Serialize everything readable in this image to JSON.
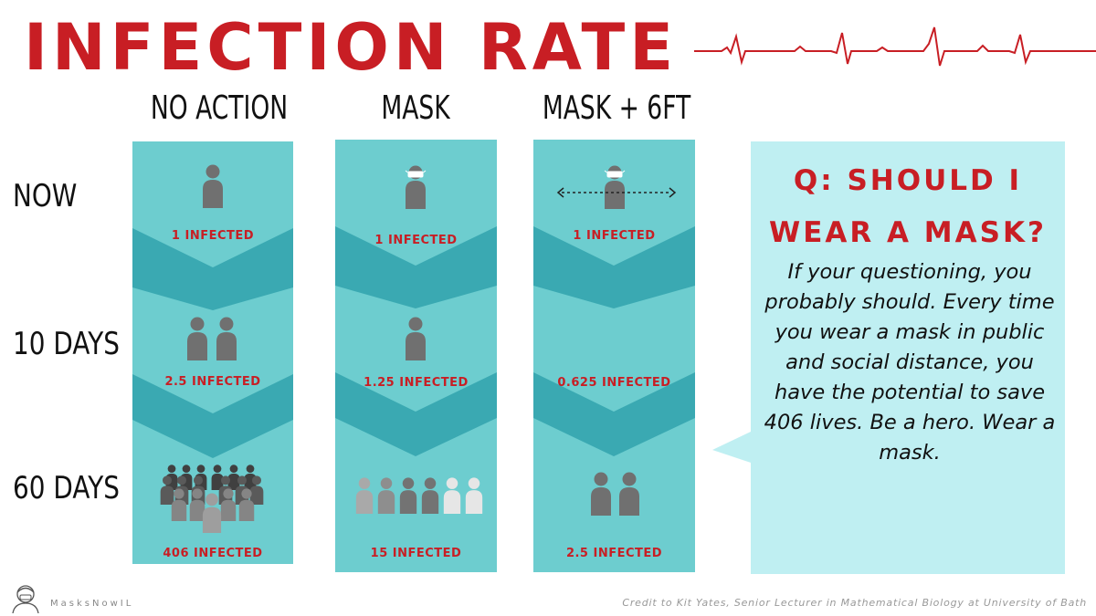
{
  "title": "INFECTION RATE",
  "columns": [
    "NO ACTION",
    "MASK",
    "MASK + 6FT"
  ],
  "rows": [
    "NOW",
    "10 DAYS",
    "60 DAYS"
  ],
  "counts": {
    "no_action": [
      "1 INFECTED",
      "2.5 INFECTED",
      "406 INFECTED"
    ],
    "mask": [
      "1 INFECTED",
      "1.25 INFECTED",
      "15 INFECTED"
    ],
    "mask_6ft": [
      "1 INFECTED",
      "0.625 INFECTED",
      "2.5 INFECTED"
    ]
  },
  "callout": {
    "question": "Q: SHOULD I WEAR A MASK?",
    "body": "If your questioning, you probably should.  Every time you wear a mask in public and social distance, you have the potential to save 406 lives.  Be a hero.  Wear a mask."
  },
  "footer": {
    "brand": "MasksNowIL",
    "credit": "Credit to Kit Yates, Senior Lecturer in Mathematical Biology at University of Bath"
  },
  "colors": {
    "title_red": "#c81e24",
    "panel_teal": "#6dcdcf",
    "chevron_teal": "#3aa9b2",
    "callout_bg": "#bfeff2",
    "person_gray": "#707070"
  },
  "icons": [
    "person-icon",
    "masked-person-icon",
    "distance-arrow-icon",
    "heartbeat-line-icon",
    "avatar-logo-icon"
  ]
}
